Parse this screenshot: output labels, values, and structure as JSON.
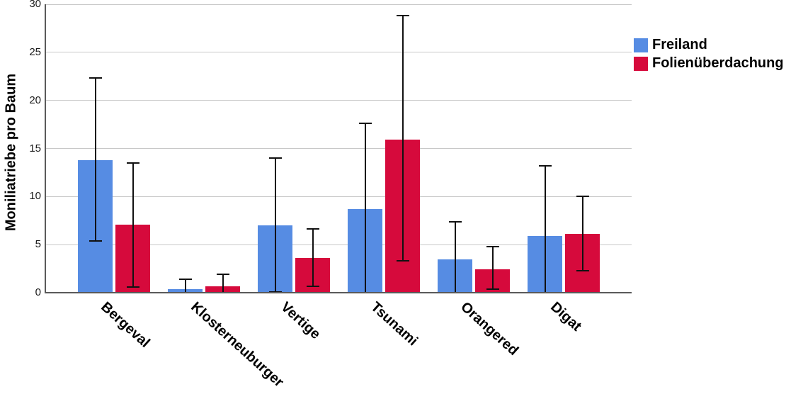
{
  "chart_data": {
    "type": "bar",
    "title": "",
    "xlabel": "",
    "ylabel": "Moniliatriebe pro Baum",
    "ylim": [
      0,
      30
    ],
    "y_ticks": [
      0,
      5,
      10,
      15,
      20,
      25,
      30
    ],
    "grid": "horizontal",
    "legend_position": "top-right",
    "error_bars": true,
    "categories": [
      "Bergeval",
      "Klosterneuburger",
      "Vertige",
      "Tsunami",
      "Orangered",
      "Digat"
    ],
    "series": [
      {
        "name": "Freiland",
        "color": "#568CE3",
        "values": [
          13.8,
          0.4,
          7.0,
          8.7,
          3.5,
          5.9
        ],
        "error_low": [
          5.4,
          0.0,
          0.1,
          0.0,
          0.0,
          0.0
        ],
        "error_high": [
          22.3,
          1.4,
          14.0,
          17.6,
          7.4,
          13.2
        ]
      },
      {
        "name": "Folienüberdachung",
        "color": "#D60A3C",
        "values": [
          7.1,
          0.7,
          3.6,
          15.9,
          2.4,
          6.1
        ],
        "error_low": [
          0.6,
          0.0,
          0.7,
          3.3,
          0.4,
          2.3
        ],
        "error_high": [
          13.5,
          1.9,
          6.6,
          28.8,
          4.8,
          10.0
        ]
      }
    ]
  },
  "colors": {
    "background": "#ffffff",
    "axis": "#5a5a5a",
    "gridline": "#c8c8c8",
    "error_bar": "#111111",
    "tick_text": "#1a1a1a",
    "label_text": "#000000"
  }
}
